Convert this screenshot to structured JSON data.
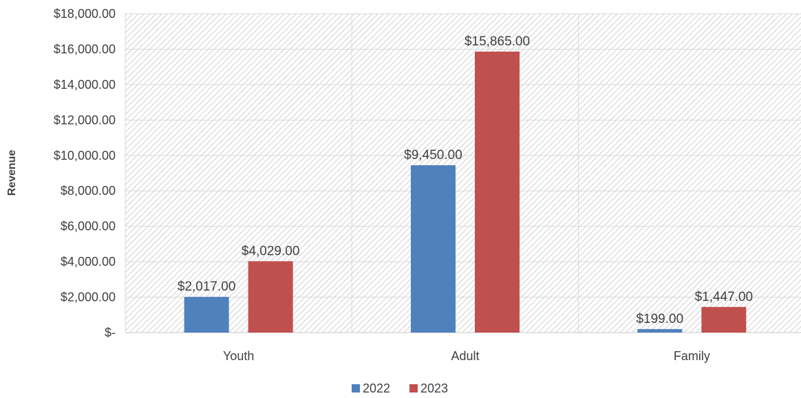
{
  "chart_data": {
    "type": "bar",
    "categories": [
      "Youth",
      "Adult",
      "Family"
    ],
    "series": [
      {
        "name": "2022",
        "values": [
          2017,
          9450,
          199
        ],
        "labels": [
          "$2,017.00",
          "$9,450.00",
          "$199.00"
        ],
        "color": "#4f81bd"
      },
      {
        "name": "2023",
        "values": [
          4029,
          15865,
          1447
        ],
        "labels": [
          "$4,029.00",
          "$15,865.00",
          "$1,447.00"
        ],
        "color": "#c0504d"
      }
    ],
    "ylabel": "Revenue",
    "xlabel": "",
    "ylim": [
      0,
      18000
    ],
    "yticks": [
      0,
      2000,
      4000,
      6000,
      8000,
      10000,
      12000,
      14000,
      16000,
      18000
    ],
    "ytick_labels": [
      "$-",
      "$2,000.00",
      "$4,000.00",
      "$6,000.00",
      "$8,000.00",
      "$10,000.00",
      "$12,000.00",
      "$14,000.00",
      "$16,000.00",
      "$18,000.00"
    ],
    "grid": true,
    "legend": "bottom-center",
    "plot_background": "hatched"
  }
}
